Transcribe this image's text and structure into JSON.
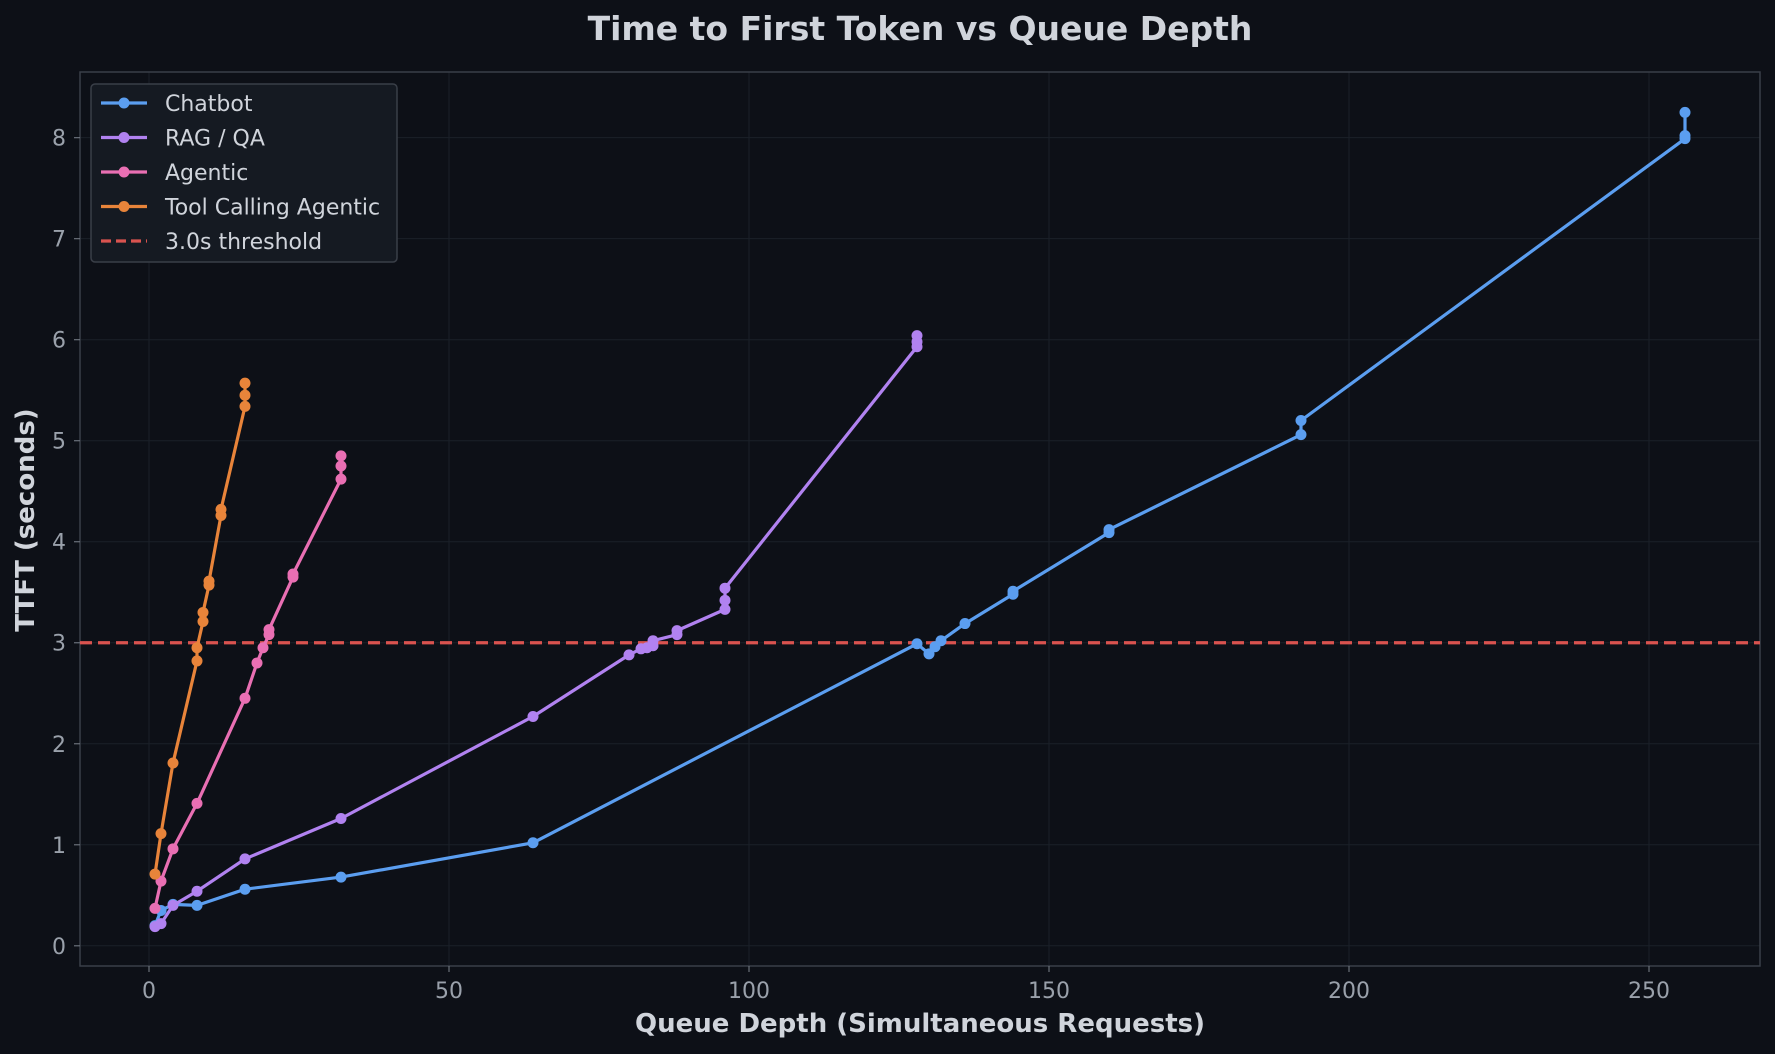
{
  "chart_data": {
    "type": "line",
    "title": "Time to First Token vs Queue Depth",
    "xlabel": "Queue Depth (Simultaneous Requests)",
    "ylabel": "TTFT (seconds)",
    "xlim": [
      -11.5,
      268.5
    ],
    "ylim": [
      -0.2,
      8.65
    ],
    "xticks": [
      0,
      50,
      100,
      150,
      200,
      250
    ],
    "yticks": [
      0,
      1,
      2,
      3,
      4,
      5,
      6,
      7,
      8
    ],
    "grid": true,
    "legend_position": "top-left",
    "background": "#0d1017",
    "series": [
      {
        "name": "Chatbot",
        "color": "#5b9ef0",
        "x": [
          1,
          2,
          4,
          8,
          16,
          32,
          64,
          128,
          130,
          131,
          132,
          136,
          144,
          144,
          160,
          160,
          192,
          192,
          256,
          256,
          256
        ],
        "y": [
          0.2,
          0.35,
          0.41,
          0.4,
          0.56,
          0.68,
          1.02,
          2.99,
          2.89,
          2.96,
          3.02,
          3.19,
          3.48,
          3.51,
          4.09,
          4.12,
          5.06,
          5.2,
          7.99,
          8.02,
          8.25
        ]
      },
      {
        "name": "RAG / QA",
        "color": "#b182f0",
        "x": [
          1,
          2,
          4,
          8,
          16,
          32,
          64,
          80,
          82,
          83,
          84,
          84,
          88,
          88,
          96,
          96,
          96,
          128,
          128,
          128
        ],
        "y": [
          0.19,
          0.22,
          0.4,
          0.54,
          0.86,
          1.26,
          2.27,
          2.88,
          2.94,
          2.95,
          2.97,
          3.02,
          3.08,
          3.12,
          3.33,
          3.42,
          3.54,
          5.93,
          5.98,
          6.04
        ]
      },
      {
        "name": "Agentic",
        "color": "#e96fb3",
        "x": [
          1,
          2,
          4,
          8,
          16,
          18,
          19,
          20,
          20,
          24,
          24,
          32,
          32,
          32
        ],
        "y": [
          0.37,
          0.64,
          0.96,
          1.41,
          2.45,
          2.8,
          2.95,
          3.08,
          3.13,
          3.65,
          3.68,
          4.62,
          4.75,
          4.85
        ]
      },
      {
        "name": "Tool Calling Agentic",
        "color": "#e8843a",
        "x": [
          1,
          2,
          4,
          8,
          8,
          9,
          9,
          10,
          10,
          12,
          12,
          16,
          16,
          16
        ],
        "y": [
          0.71,
          1.11,
          1.81,
          2.82,
          2.95,
          3.21,
          3.3,
          3.57,
          3.61,
          4.26,
          4.32,
          5.34,
          5.45,
          5.57
        ]
      }
    ],
    "threshold": {
      "name": "3.0s threshold",
      "y": 3.0,
      "color": "#d9534f",
      "style": "dashed"
    }
  }
}
